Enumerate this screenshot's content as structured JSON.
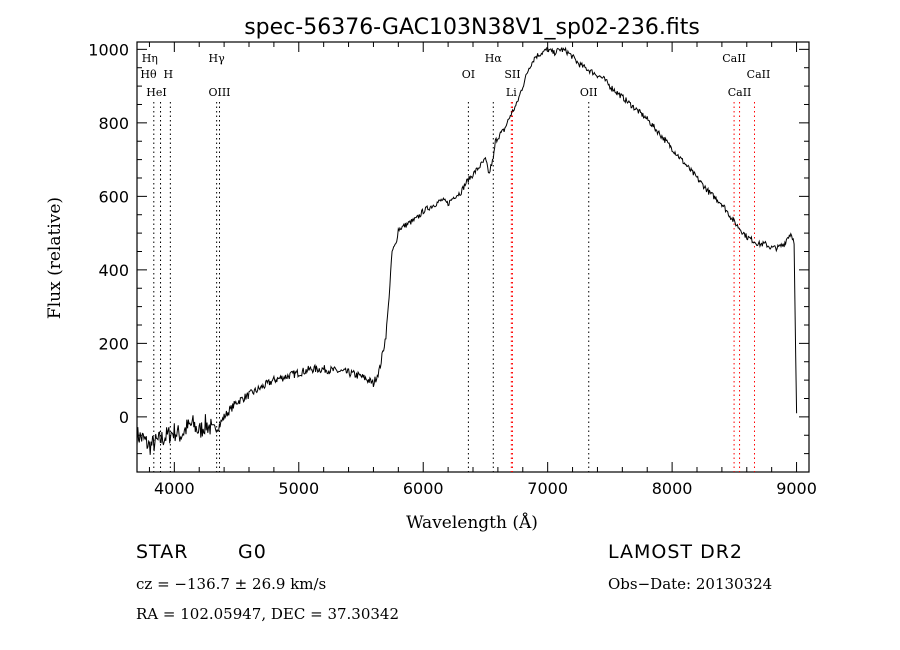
{
  "chart_data": {
    "type": "line",
    "title": "spec-56376-GAC103N38V1_sp02-236.fits",
    "xlabel": "Wavelength (Å)",
    "ylabel": "Flux (relative)",
    "xlim": [
      3700,
      9100
    ],
    "ylim": [
      -150,
      1020
    ],
    "xticks": [
      4000,
      5000,
      6000,
      7000,
      8000,
      9000
    ],
    "yticks": [
      0,
      200,
      400,
      600,
      800,
      1000
    ],
    "grid": false,
    "series": [
      {
        "values_note": "",
        "x": [
          3700,
          3750,
          3800,
          3850,
          3900,
          3950,
          4000,
          4050,
          4100,
          4150,
          4200,
          4250,
          4300,
          4350,
          4400,
          4450,
          4500,
          4550,
          4600,
          4650,
          4700,
          4800,
          4900,
          5000,
          5100,
          5200,
          5300,
          5400,
          5500,
          5560,
          5600,
          5650,
          5700,
          5720,
          5750,
          5780,
          5800,
          5850,
          5900,
          5950,
          6000,
          6050,
          6100,
          6150,
          6200,
          6250,
          6300,
          6350,
          6400,
          6450,
          6500,
          6530,
          6550,
          6563,
          6580,
          6620,
          6650,
          6700,
          6750,
          6800,
          6850,
          6900,
          6950,
          7000,
          7050,
          7100,
          7150,
          7200,
          7250,
          7300,
          7350,
          7400,
          7450,
          7500,
          7600,
          7700,
          7800,
          7900,
          8000,
          8100,
          8200,
          8300,
          8400,
          8500,
          8550,
          8600,
          8650,
          8700,
          8750,
          8800,
          8850,
          8900,
          8930,
          8960,
          8980,
          9000
        ],
        "y": [
          -50,
          -60,
          -80,
          -70,
          -60,
          -50,
          -40,
          -50,
          -30,
          -20,
          -40,
          -20,
          -30,
          -30,
          0,
          20,
          40,
          50,
          60,
          70,
          80,
          100,
          110,
          120,
          130,
          130,
          125,
          120,
          110,
          100,
          90,
          130,
          220,
          300,
          450,
          470,
          510,
          520,
          530,
          540,
          560,
          570,
          580,
          590,
          580,
          600,
          610,
          640,
          660,
          680,
          700,
          660,
          690,
          700,
          750,
          770,
          780,
          820,
          850,
          900,
          950,
          980,
          990,
          1000,
          990,
          1000,
          995,
          980,
          960,
          950,
          940,
          930,
          920,
          900,
          870,
          840,
          810,
          770,
          730,
          690,
          650,
          610,
          580,
          530,
          510,
          490,
          480,
          470,
          470,
          460,
          460,
          470,
          490,
          500,
          470,
          10
        ]
      }
    ],
    "lines": [
      {
        "label": "Hη",
        "x": 3835,
        "color": "#000000"
      },
      {
        "label": "Hθ",
        "x": 3889,
        "color": "#000000"
      },
      {
        "label": "H",
        "x": 3968,
        "color": "#000000"
      },
      {
        "label": "HeI",
        "x": 3889,
        "color": "#000000"
      },
      {
        "label": "Hγ",
        "x": 4340,
        "color": "#000000"
      },
      {
        "label": "OIII",
        "x": 4363,
        "color": "#000000"
      },
      {
        "label": "OI",
        "x": 6363,
        "color": "#000000"
      },
      {
        "label": "Hα",
        "x": 6563,
        "color": "#000000"
      },
      {
        "label": "SII",
        "x": 6717,
        "color": "#ff0000"
      },
      {
        "label": "Li",
        "x": 6708,
        "color": "#ff0000"
      },
      {
        "label": "OII",
        "x": 7330,
        "color": "#000000"
      },
      {
        "label": "CaII",
        "x": 8498,
        "color": "#ff0000"
      },
      {
        "label": "CaII",
        "x": 8542,
        "color": "#ff0000"
      },
      {
        "label": "CaII",
        "x": 8662,
        "color": "#ff0000"
      }
    ]
  },
  "info": {
    "class": "STAR",
    "subclass": "G0",
    "survey": "LAMOST DR2",
    "cz": "cz = −136.7 ± 26.9 km/s",
    "obs_date": "Obs−Date: 20130324",
    "radec": "RA = 102.05947, DEC =  37.30342"
  }
}
